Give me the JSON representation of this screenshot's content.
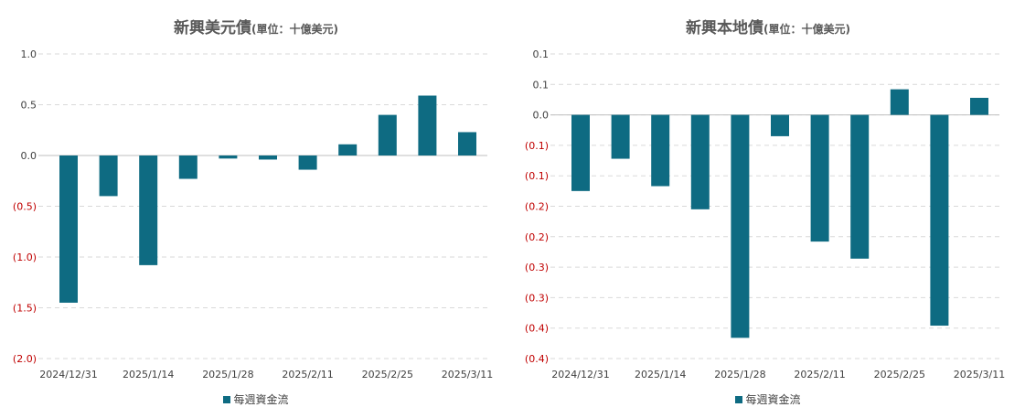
{
  "colors": {
    "bar": "#0e6b82",
    "negative_label": "#c00000",
    "positive_label": "#404040",
    "grid": "#d9d9d9"
  },
  "chart_data": [
    {
      "type": "bar",
      "title": "新興美元債",
      "unit": "(單位：十億美元)",
      "legend": "每週資金流",
      "legend_position": "bottom",
      "grid": true,
      "ylim": [
        -2.0,
        1.0
      ],
      "y_ticks": [
        {
          "value": 1.0,
          "label": "1.0"
        },
        {
          "value": 0.5,
          "label": "0.5"
        },
        {
          "value": 0.0,
          "label": "0.0"
        },
        {
          "value": -0.5,
          "label": "(0.5)"
        },
        {
          "value": -1.0,
          "label": "(1.0)"
        },
        {
          "value": -1.5,
          "label": "(1.5)"
        },
        {
          "value": -2.0,
          "label": "(2.0)"
        }
      ],
      "x_tick_labels": [
        "2024/12/31",
        "2025/1/14",
        "2025/1/28",
        "2025/2/11",
        "2025/2/25",
        "2025/3/11"
      ],
      "values": [
        -1.45,
        -0.4,
        -1.08,
        -0.23,
        -0.03,
        -0.04,
        -0.14,
        0.11,
        0.4,
        0.59,
        0.23
      ]
    },
    {
      "type": "bar",
      "title": "新興本地債",
      "unit": "(單位：十億美元)",
      "legend": "每週資金流",
      "legend_position": "bottom",
      "grid": true,
      "ylim": [
        -0.4,
        0.1
      ],
      "y_ticks": [
        {
          "value": 0.1,
          "label": "0.1"
        },
        {
          "value": 0.05,
          "label": "0.1"
        },
        {
          "value": 0.0,
          "label": "0.0"
        },
        {
          "value": -0.05,
          "label": "(0.1)"
        },
        {
          "value": -0.1,
          "label": "(0.1)"
        },
        {
          "value": -0.15,
          "label": "(0.2)"
        },
        {
          "value": -0.2,
          "label": "(0.2)"
        },
        {
          "value": -0.25,
          "label": "(0.3)"
        },
        {
          "value": -0.3,
          "label": "(0.3)"
        },
        {
          "value": -0.35,
          "label": "(0.4)"
        },
        {
          "value": -0.4,
          "label": "(0.4)"
        }
      ],
      "x_tick_labels": [
        "2024/12/31",
        "2025/1/14",
        "2025/1/28",
        "2025/2/11",
        "2025/2/25",
        "2025/3/11"
      ],
      "values": [
        -0.125,
        -0.072,
        -0.117,
        -0.155,
        -0.366,
        -0.035,
        -0.208,
        -0.236,
        0.042,
        -0.346,
        0.028
      ]
    }
  ]
}
